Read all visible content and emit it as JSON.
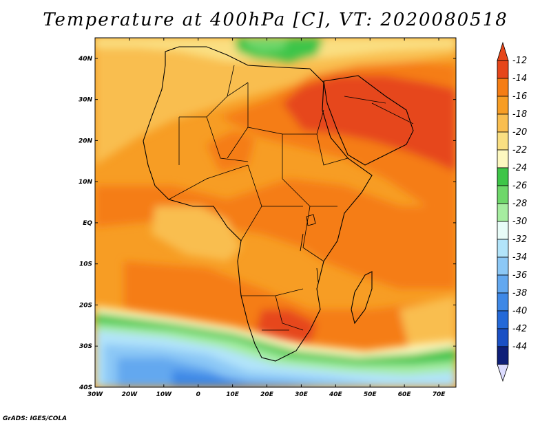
{
  "title": "Temperature at 400hPa [C], VT: 2020080518",
  "credit": "GrADS: IGES/COLA",
  "map": {
    "lon_range": [
      -30,
      75
    ],
    "lat_range": [
      -40,
      45
    ],
    "x_ticks": [
      {
        "lon": -30,
        "label": "30W"
      },
      {
        "lon": -20,
        "label": "20W"
      },
      {
        "lon": -10,
        "label": "10W"
      },
      {
        "lon": 0,
        "label": "0"
      },
      {
        "lon": 10,
        "label": "10E"
      },
      {
        "lon": 20,
        "label": "20E"
      },
      {
        "lon": 30,
        "label": "30E"
      },
      {
        "lon": 40,
        "label": "40E"
      },
      {
        "lon": 50,
        "label": "50E"
      },
      {
        "lon": 60,
        "label": "60E"
      },
      {
        "lon": 70,
        "label": "70E"
      }
    ],
    "y_ticks": [
      {
        "lat": 40,
        "label": "40N"
      },
      {
        "lat": 30,
        "label": "30N"
      },
      {
        "lat": 20,
        "label": "20N"
      },
      {
        "lat": 10,
        "label": "10N"
      },
      {
        "lat": 0,
        "label": "EQ"
      },
      {
        "lat": -10,
        "label": "10S"
      },
      {
        "lat": -20,
        "label": "20S"
      },
      {
        "lat": -30,
        "label": "30S"
      },
      {
        "lat": -40,
        "label": "40S"
      }
    ],
    "colors": {
      "c_12": "#e6461a",
      "c_14": "#f57d14",
      "c_16": "#f79d24",
      "c_18": "#f9be50",
      "c_20": "#fadf82",
      "c_22": "#fdf8c0",
      "c_24": "#3ec548",
      "c_26": "#6ed76a",
      "c_28": "#a6eda0",
      "c_30": "#e8fcf8",
      "c_32": "#b2e4fa",
      "c_34": "#8cc8f6",
      "c_36": "#63a8ef",
      "c_38": "#3e88e6",
      "c_40": "#2469d8",
      "c_42": "#1a50c4",
      "c_44": "#0e1f78"
    }
  },
  "colorbar": {
    "levels": [
      "-12",
      "-14",
      "-16",
      "-18",
      "-20",
      "-22",
      "-24",
      "-26",
      "-28",
      "-30",
      "-32",
      "-34",
      "-36",
      "-38",
      "-40",
      "-42",
      "-44"
    ],
    "colors": [
      "#e6461a",
      "#f57d14",
      "#f79d24",
      "#f9be50",
      "#fadf82",
      "#fdf8c0",
      "#3ec548",
      "#6ed76a",
      "#a6eda0",
      "#e8fcf8",
      "#b2e4fa",
      "#8cc8f6",
      "#63a8ef",
      "#3e88e6",
      "#2469d8",
      "#1a50c4",
      "#0e1f78"
    ],
    "over_color": "#e6461a",
    "under_color": "#dcdcff"
  }
}
